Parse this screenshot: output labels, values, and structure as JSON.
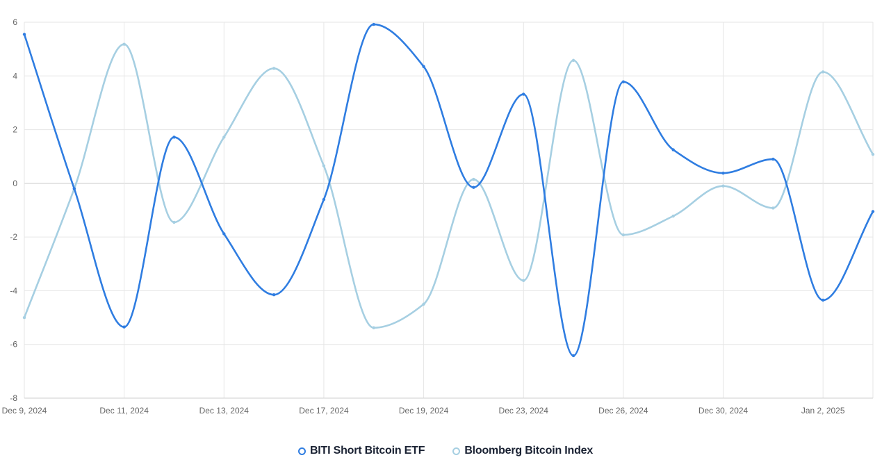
{
  "chart_data": {
    "type": "line",
    "x": [
      "Dec 9, 2024",
      "Dec 10, 2024",
      "Dec 11, 2024",
      "Dec 12, 2024",
      "Dec 13, 2024",
      "Dec 16, 2024",
      "Dec 17, 2024",
      "Dec 18, 2024",
      "Dec 19, 2024",
      "Dec 20, 2024",
      "Dec 23, 2024",
      "Dec 24, 2024",
      "Dec 26, 2024",
      "Dec 27, 2024",
      "Dec 30, 2024",
      "Dec 31, 2024",
      "Jan 2, 2025",
      "Jan 3, 2025"
    ],
    "x_tick_labels": [
      "Dec 9, 2024",
      "Dec 11, 2024",
      "Dec 13, 2024",
      "Dec 17, 2024",
      "Dec 19, 2024",
      "Dec 23, 2024",
      "Dec 26, 2024",
      "Dec 30, 2024",
      "Jan 2, 2025"
    ],
    "y_ticks": [
      6,
      4,
      2,
      0,
      -2,
      -4,
      -6,
      -8
    ],
    "ylim": [
      -8,
      6
    ],
    "grid": true,
    "legend_position": "bottom-center",
    "series": [
      {
        "name": "BITI Short Bitcoin ETF",
        "color": "#2f7de1",
        "values": [
          5.55,
          -0.2,
          -5.35,
          1.72,
          -1.88,
          -4.15,
          -0.6,
          5.92,
          4.35,
          -0.15,
          3.32,
          -6.42,
          3.78,
          1.25,
          0.38,
          0.9,
          -4.35,
          -1.05
        ]
      },
      {
        "name": "Bloomberg Bitcoin Index",
        "color": "#a6cfe2",
        "values": [
          -5.0,
          -0.2,
          5.18,
          -1.45,
          1.72,
          4.28,
          0.65,
          -5.38,
          -4.5,
          0.15,
          -3.62,
          4.58,
          -1.92,
          -1.22,
          -0.1,
          -0.92,
          4.15,
          1.08
        ]
      }
    ]
  }
}
